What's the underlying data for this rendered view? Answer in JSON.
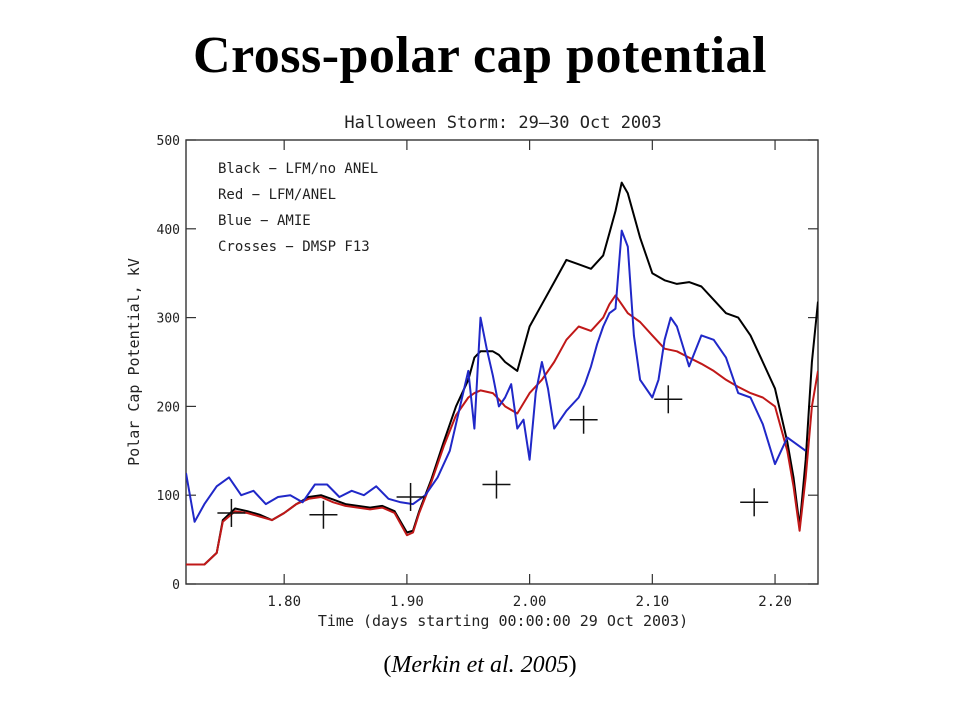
{
  "slide": {
    "title": "Cross-polar cap potential",
    "citation_open": "(",
    "citation_text": "Merkin et al. 2005",
    "citation_close": ")"
  },
  "chart_data": {
    "type": "line",
    "title": "Halloween Storm: 29–30 Oct 2003",
    "xlabel": "Time (days starting 00:00:00 29 Oct 2003)",
    "ylabel": "Polar Cap Potential, kV",
    "xlim": [
      1.72,
      2.235
    ],
    "ylim": [
      0,
      500
    ],
    "xticks": [
      "1.80",
      "1.90",
      "2.00",
      "2.10",
      "2.20"
    ],
    "xtick_values": [
      1.8,
      1.9,
      2.0,
      2.1,
      2.2
    ],
    "yticks": [
      "0",
      "100",
      "200",
      "300",
      "400",
      "500"
    ],
    "ytick_values": [
      0,
      100,
      200,
      300,
      400,
      500
    ],
    "grid": false,
    "legend_position": "top-left",
    "legend": [
      "Black − LFM/no ANEL",
      "Red − LFM/ANEL",
      "Blue − AMIE",
      "Crosses − DMSP F13"
    ],
    "series": [
      {
        "name": "LFM/no ANEL",
        "color": "#000000",
        "x": [
          1.72,
          1.735,
          1.745,
          1.75,
          1.76,
          1.77,
          1.78,
          1.79,
          1.8,
          1.81,
          1.82,
          1.83,
          1.84,
          1.85,
          1.86,
          1.87,
          1.88,
          1.89,
          1.9,
          1.905,
          1.91,
          1.92,
          1.93,
          1.94,
          1.95,
          1.955,
          1.96,
          1.97,
          1.975,
          1.98,
          1.99,
          2.0,
          2.01,
          2.02,
          2.03,
          2.04,
          2.05,
          2.06,
          2.065,
          2.07,
          2.075,
          2.08,
          2.09,
          2.1,
          2.11,
          2.12,
          2.13,
          2.14,
          2.15,
          2.16,
          2.17,
          2.18,
          2.19,
          2.2,
          2.21,
          2.215,
          2.22,
          2.225,
          2.23,
          2.235
        ],
        "y": [
          22,
          22,
          35,
          72,
          85,
          82,
          78,
          72,
          80,
          90,
          98,
          100,
          95,
          90,
          88,
          86,
          88,
          82,
          58,
          60,
          82,
          118,
          160,
          200,
          230,
          255,
          262,
          262,
          258,
          250,
          240,
          290,
          315,
          340,
          365,
          360,
          355,
          370,
          395,
          420,
          452,
          440,
          390,
          350,
          342,
          338,
          340,
          335,
          320,
          305,
          300,
          280,
          250,
          220,
          160,
          120,
          65,
          140,
          250,
          318
        ]
      },
      {
        "name": "LFM/ANEL",
        "color": "#c01818",
        "x": [
          1.72,
          1.735,
          1.745,
          1.75,
          1.76,
          1.77,
          1.78,
          1.79,
          1.8,
          1.81,
          1.82,
          1.83,
          1.84,
          1.85,
          1.86,
          1.87,
          1.88,
          1.89,
          1.9,
          1.905,
          1.91,
          1.92,
          1.93,
          1.94,
          1.95,
          1.955,
          1.96,
          1.97,
          1.975,
          1.98,
          1.99,
          2.0,
          2.01,
          2.02,
          2.03,
          2.04,
          2.05,
          2.06,
          2.065,
          2.07,
          2.075,
          2.08,
          2.09,
          2.1,
          2.11,
          2.12,
          2.13,
          2.14,
          2.15,
          2.16,
          2.17,
          2.18,
          2.19,
          2.2,
          2.21,
          2.215,
          2.22,
          2.225,
          2.23,
          2.235
        ],
        "y": [
          22,
          22,
          35,
          70,
          82,
          80,
          76,
          72,
          80,
          90,
          96,
          98,
          92,
          88,
          86,
          84,
          86,
          80,
          55,
          58,
          80,
          115,
          155,
          190,
          210,
          215,
          218,
          215,
          208,
          200,
          192,
          215,
          230,
          250,
          275,
          290,
          285,
          300,
          315,
          325,
          315,
          305,
          295,
          280,
          265,
          262,
          255,
          248,
          240,
          230,
          222,
          215,
          210,
          200,
          150,
          110,
          60,
          120,
          200,
          240
        ]
      },
      {
        "name": "AMIE",
        "color": "#2028c8",
        "x": [
          1.72,
          1.727,
          1.735,
          1.745,
          1.755,
          1.765,
          1.775,
          1.785,
          1.795,
          1.805,
          1.815,
          1.825,
          1.835,
          1.845,
          1.855,
          1.865,
          1.875,
          1.885,
          1.895,
          1.905,
          1.915,
          1.925,
          1.935,
          1.945,
          1.95,
          1.955,
          1.96,
          1.965,
          1.97,
          1.975,
          1.98,
          1.985,
          1.99,
          1.995,
          2.0,
          2.005,
          2.01,
          2.015,
          2.02,
          2.03,
          2.04,
          2.045,
          2.05,
          2.055,
          2.06,
          2.065,
          2.07,
          2.075,
          2.08,
          2.085,
          2.09,
          2.1,
          2.105,
          2.11,
          2.115,
          2.12,
          2.13,
          2.14,
          2.15,
          2.16,
          2.17,
          2.18,
          2.19,
          2.2,
          2.21,
          2.215,
          2.225
        ],
        "y": [
          125,
          70,
          90,
          110,
          120,
          100,
          105,
          90,
          98,
          100,
          92,
          112,
          112,
          98,
          105,
          100,
          110,
          96,
          92,
          90,
          100,
          120,
          150,
          210,
          240,
          175,
          300,
          265,
          235,
          200,
          210,
          225,
          175,
          185,
          140,
          215,
          250,
          220,
          175,
          195,
          210,
          225,
          245,
          270,
          290,
          305,
          310,
          398,
          380,
          280,
          230,
          210,
          230,
          275,
          300,
          290,
          245,
          280,
          275,
          255,
          215,
          210,
          180,
          135,
          165,
          160,
          150
        ]
      }
    ],
    "dmsp_crosses": {
      "name": "DMSP F13",
      "x": [
        1.757,
        1.832,
        1.903,
        1.973,
        2.044,
        2.113,
        2.183
      ],
      "y": [
        80,
        78,
        98,
        112,
        185,
        208,
        92
      ]
    }
  }
}
